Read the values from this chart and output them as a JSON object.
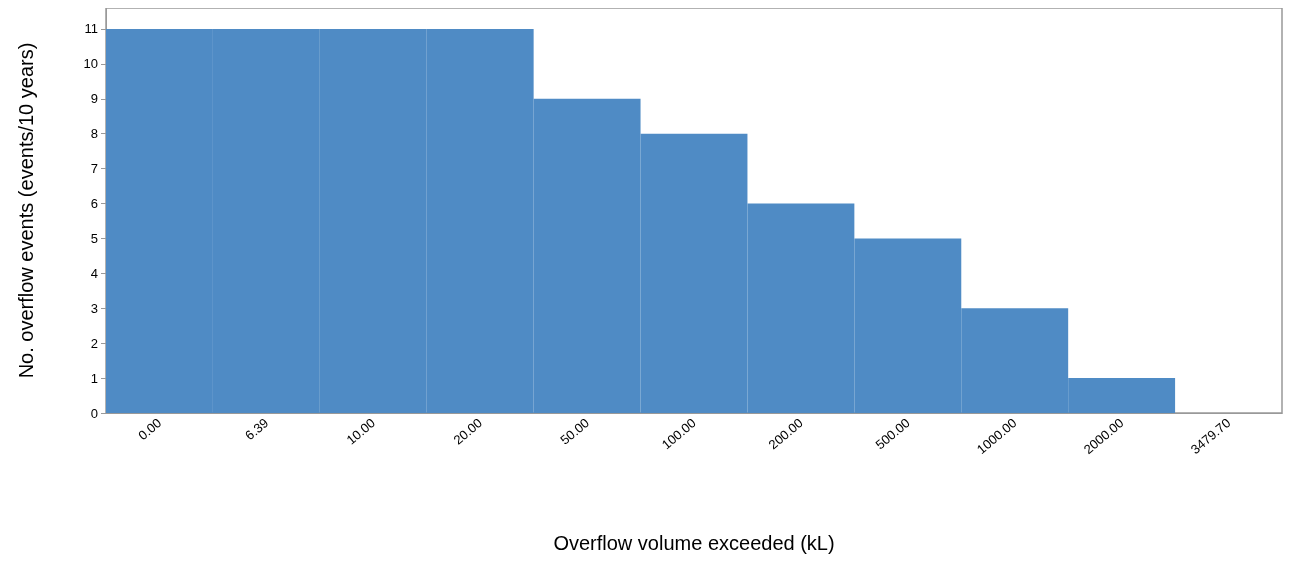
{
  "chart_data": {
    "type": "bar",
    "xlabel": "Overflow volume exceeded (kL)",
    "ylabel": "No. overflow events (events/10 years)",
    "categories": [
      "0.00",
      "6.39",
      "10.00",
      "20.00",
      "50.00",
      "100.00",
      "200.00",
      "500.00",
      "1000.00",
      "2000.00",
      "3479.70"
    ],
    "values": [
      11,
      11,
      11,
      11,
      9,
      8,
      6,
      5,
      3,
      1,
      0
    ],
    "color": "#4f8bc5",
    "ylim": [
      0,
      11.6
    ],
    "yticks": [
      0,
      1,
      2,
      3,
      4,
      5,
      6,
      7,
      8,
      9,
      10,
      11
    ],
    "grid": false
  }
}
